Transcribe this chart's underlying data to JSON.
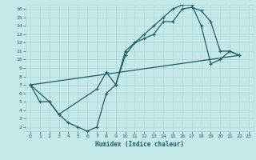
{
  "xlabel": "Humidex (Indice chaleur)",
  "bg_color": "#c5e8e8",
  "grid_color": "#aad4d4",
  "line_color": "#1a6060",
  "xlim": [
    -0.5,
    23.5
  ],
  "ylim": [
    1.5,
    16.5
  ],
  "xticks": [
    0,
    1,
    2,
    3,
    4,
    5,
    6,
    7,
    8,
    9,
    10,
    11,
    12,
    13,
    14,
    15,
    16,
    17,
    18,
    19,
    20,
    21,
    22,
    23
  ],
  "yticks": [
    2,
    3,
    4,
    5,
    6,
    7,
    8,
    9,
    10,
    11,
    12,
    13,
    14,
    15,
    16
  ],
  "line1_x": [
    0,
    1,
    2,
    3,
    4,
    5,
    6,
    7,
    8,
    9,
    10,
    11,
    12,
    13,
    14,
    15,
    16,
    17,
    18,
    19,
    20,
    21,
    22
  ],
  "line1_y": [
    7,
    5,
    5,
    3.5,
    2.5,
    2.0,
    1.5,
    2.0,
    6.0,
    7.0,
    10.5,
    12.0,
    12.5,
    13.0,
    14.5,
    14.5,
    16.0,
    16.2,
    15.8,
    14.5,
    11.0,
    11.0,
    10.5
  ],
  "line2_x": [
    0,
    2,
    3,
    7,
    8,
    9,
    10,
    11,
    12,
    13,
    14,
    15,
    16,
    17,
    18,
    19,
    20,
    21,
    22
  ],
  "line2_y": [
    7,
    5,
    3.5,
    6.5,
    8.5,
    7.0,
    11.0,
    12.0,
    13.0,
    14.0,
    15.0,
    16.0,
    16.5,
    16.5,
    14.0,
    9.5,
    10.0,
    11.0,
    10.5
  ],
  "line3_x": [
    0,
    22
  ],
  "line3_y": [
    7,
    10.5
  ]
}
